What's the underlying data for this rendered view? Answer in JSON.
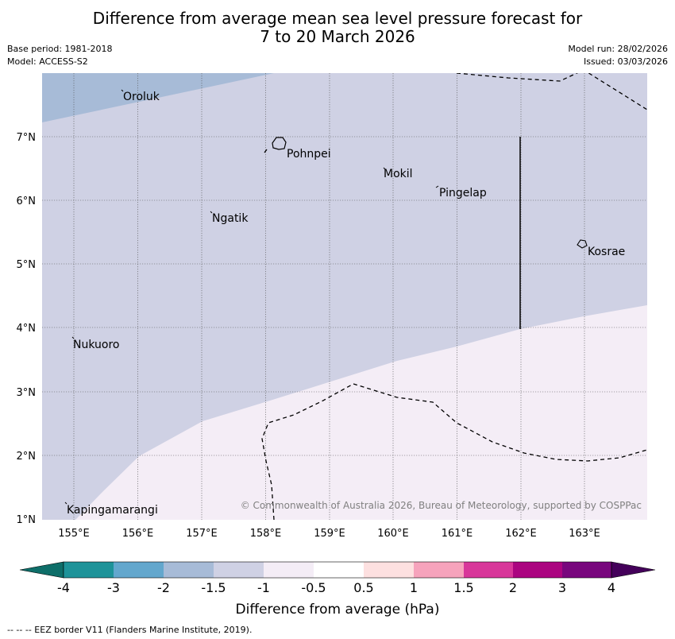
{
  "title": {
    "line1": "Difference from average mean sea level pressure forecast for",
    "line2": "7 to 20 March 2026"
  },
  "meta": {
    "base_period": "Base period: 1981-2018",
    "model": "Model: ACCESS-S2",
    "model_run": "Model run: 28/02/2026",
    "issued": "Issued: 03/03/2026"
  },
  "map": {
    "lon_ticks": [
      "155°E",
      "156°E",
      "157°E",
      "158°E",
      "159°E",
      "160°E",
      "161°E",
      "162°E",
      "163°E"
    ],
    "lat_ticks": [
      "7°N",
      "6°N",
      "5°N",
      "4°N",
      "3°N",
      "2°N",
      "1°N"
    ],
    "places": [
      {
        "name": "Oroluk"
      },
      {
        "name": "Pohnpei"
      },
      {
        "name": "Mokil"
      },
      {
        "name": "Pingelap"
      },
      {
        "name": "Ngatik"
      },
      {
        "name": "Kosrae"
      },
      {
        "name": "Nukuoro"
      },
      {
        "name": "Kapingamarangi"
      }
    ],
    "copyright": "© Commonwealth of Australia 2026, Bureau of Meteorology, supported by COSPPac",
    "fill_colors": {
      "band_-2_-1.5": "#a7bbd7",
      "band_-1.5_-1": "#cfd1e4",
      "band_-1_-0.5": "#f4edf6"
    }
  },
  "colorbar": {
    "ticks": [
      "-4",
      "-3",
      "-2",
      "-1.5",
      "-1",
      "-0.5",
      "0.5",
      "1",
      "1.5",
      "2",
      "3",
      "4"
    ],
    "colors": [
      "#0e6e69",
      "#1e9399",
      "#63a7cd",
      "#a7bbd7",
      "#cfd1e4",
      "#f4edf6",
      "#ffffff",
      "#fde0e0",
      "#f6a3bc",
      "#d8379a",
      "#ab0480",
      "#78067d",
      "#44005a"
    ],
    "label": "Difference from average (hPa)"
  },
  "footer": {
    "legend": "-- -- -- EEZ border V11 (Flanders Marine Institute, 2019)."
  }
}
